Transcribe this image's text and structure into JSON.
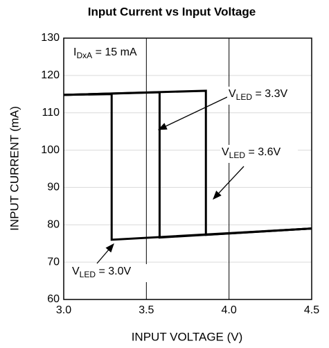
{
  "chart_data": {
    "type": "line",
    "title": "Input Current vs Input Voltage",
    "xlabel": "INPUT VOLTAGE (V)",
    "ylabel": "INPUT CURRENT (mA)",
    "xlim": [
      3.0,
      4.5
    ],
    "xticks": [
      {
        "value": 3.0,
        "label": "3.0"
      },
      3.5,
      {
        "value": 4.0,
        "label": "4.0"
      },
      4.5
    ],
    "ylim": [
      60,
      130
    ],
    "yticks": [
      60,
      70,
      80,
      90,
      100,
      110,
      120,
      130
    ],
    "grid": true,
    "color": "#000000",
    "series": [
      {
        "x": [
          3.0,
          3.29,
          3.29,
          4.5
        ],
        "values": [
          114.8,
          115.0,
          76.0,
          79.0
        ]
      },
      {
        "x": [
          3.0,
          3.58,
          3.58,
          4.5
        ],
        "values": [
          114.8,
          115.5,
          76.6,
          79.0
        ]
      },
      {
        "x": [
          3.0,
          3.86,
          3.86,
          4.5
        ],
        "values": [
          114.8,
          115.9,
          77.3,
          79.0
        ]
      }
    ],
    "annotations": [
      {
        "label": "I",
        "subscript": "DxA",
        "suffix": " = 15 mA"
      },
      {
        "label": "V",
        "subscript": "LED",
        "suffix": " = 3.3V"
      },
      {
        "label": "V",
        "subscript": "LED",
        "suffix": " = 3.6V"
      },
      {
        "label": "V",
        "subscript": "LED",
        "suffix": " = 3.0V"
      }
    ]
  }
}
